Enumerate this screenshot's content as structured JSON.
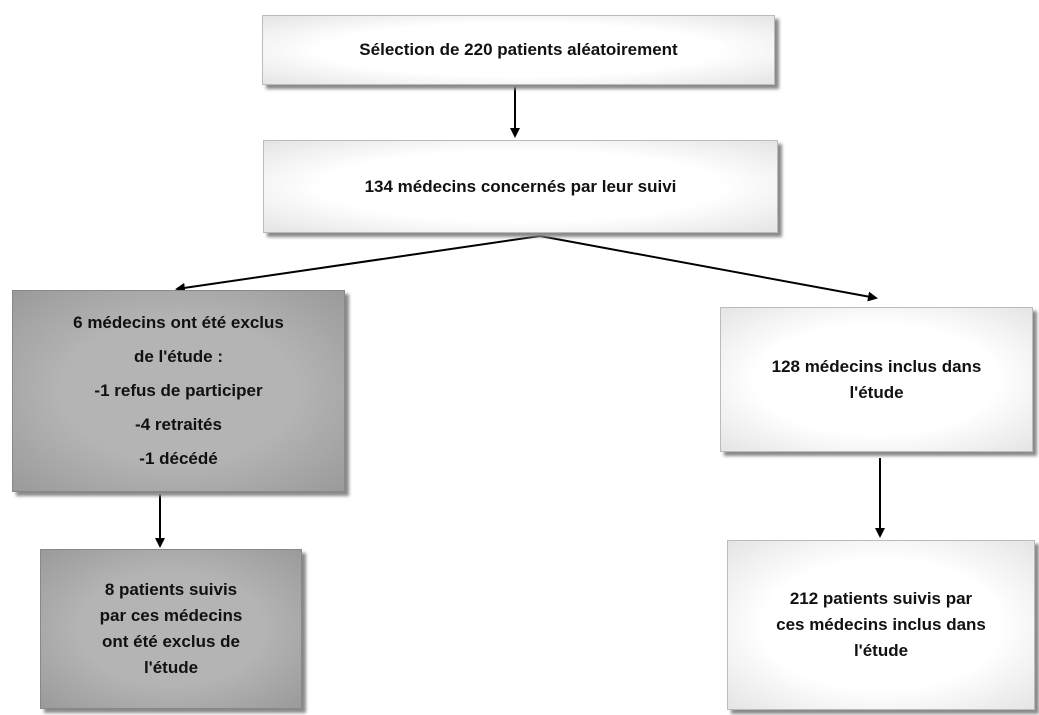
{
  "nodes": [
    {
      "lines": [
        "Sélection de 220 patients aléatoirement"
      ]
    },
    {
      "lines": [
        "134 médecins concernés par leur suivi"
      ]
    },
    {
      "lines": [
        "6 médecins ont été exclus",
        "de l'étude :",
        "-1 refus de participer",
        "-4 retraités",
        "-1 décédé"
      ]
    },
    {
      "lines": [
        "128 médecins inclus dans",
        "l'étude"
      ]
    },
    {
      "lines": [
        "8 patients suivis",
        "par ces médecins",
        "ont été exclus de",
        "l'étude"
      ]
    },
    {
      "lines": [
        "212 patients suivis par",
        "ces médecins inclus dans",
        "l'étude"
      ]
    }
  ]
}
